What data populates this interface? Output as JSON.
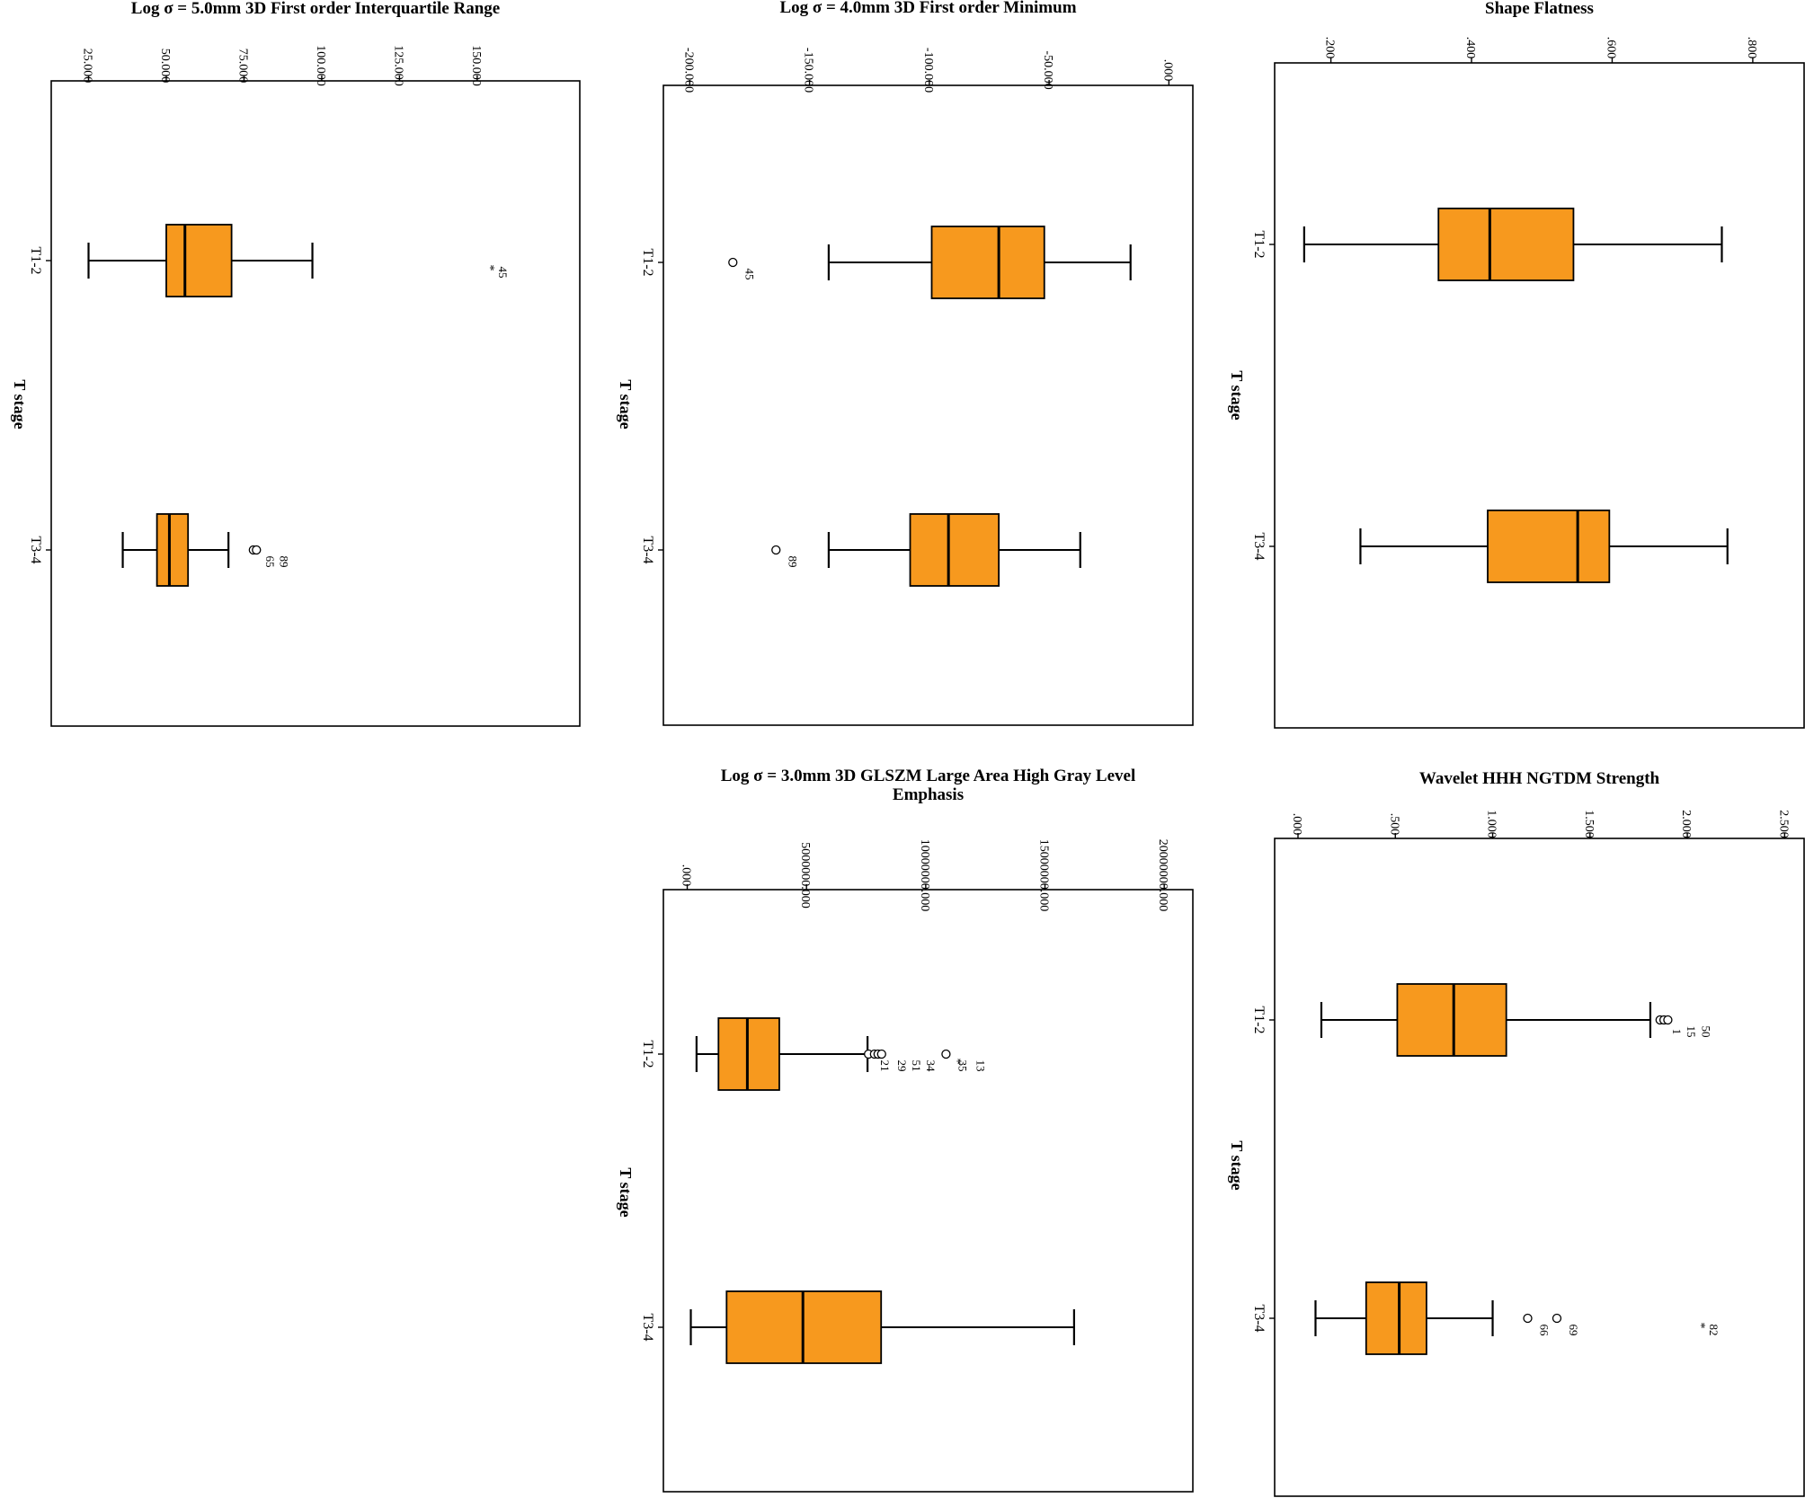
{
  "chart_data": [
    {
      "type": "boxplot",
      "title": "Log σ = 5.0mm 3D First order Interquartile Range",
      "xlabel": "T stage",
      "categories": [
        "T1-2",
        "T3-4"
      ],
      "ylim": [
        13,
        183
      ],
      "ticks": [
        25,
        50,
        75,
        100,
        125,
        150
      ],
      "tick_labels": [
        "25.000",
        "50.000",
        "75.000",
        "100.000",
        "125.000",
        "150.000"
      ],
      "series": [
        {
          "category": "T1-2",
          "min": 25,
          "q1": 50,
          "median": 56,
          "q3": 71,
          "max": 97,
          "outliers": [
            {
              "value": 153,
              "kind": "extreme",
              "label": "45"
            }
          ]
        },
        {
          "category": "T3-4",
          "min": 36,
          "q1": 47,
          "median": 51,
          "q3": 57,
          "max": 70,
          "outliers": [
            {
              "value": 78,
              "kind": "outlier",
              "label": "65"
            },
            {
              "value": 79,
              "kind": "outlier",
              "label": "89"
            }
          ]
        }
      ]
    },
    {
      "type": "boxplot",
      "title": "Log σ = 4.0mm 3D First order Minimum",
      "xlabel": "T stage",
      "categories": [
        "T1-2",
        "T3-4"
      ],
      "ylim": [
        -211,
        10
      ],
      "ticks": [
        -200,
        -150,
        -100,
        -50,
        0
      ],
      "tick_labels": [
        "-200.000",
        "-150.000",
        "-100.000",
        "-50.000",
        ".000"
      ],
      "series": [
        {
          "category": "T1-2",
          "min": -142,
          "q1": -99,
          "median": -71,
          "q3": -52,
          "max": -16,
          "outliers": [
            {
              "value": -182,
              "kind": "outlier",
              "label": "45"
            }
          ]
        },
        {
          "category": "T3-4",
          "min": -142,
          "q1": -108,
          "median": -92,
          "q3": -71,
          "max": -37,
          "outliers": [
            {
              "value": -164,
              "kind": "outlier",
              "label": "89"
            }
          ]
        }
      ]
    },
    {
      "type": "boxplot",
      "title": "Shape Flatness",
      "xlabel": "T stage",
      "categories": [
        "T1-2",
        "T3-4"
      ],
      "ylim": [
        0.12,
        0.873
      ],
      "ticks": [
        0.2,
        0.4,
        0.6,
        0.8
      ],
      "tick_labels": [
        ".200",
        ".400",
        ".600",
        ".800"
      ],
      "series": [
        {
          "category": "T1-2",
          "min": 0.162,
          "q1": 0.353,
          "median": 0.426,
          "q3": 0.545,
          "max": 0.756,
          "outliers": []
        },
        {
          "category": "T3-4",
          "min": 0.242,
          "q1": 0.423,
          "median": 0.551,
          "q3": 0.596,
          "max": 0.764,
          "outliers": []
        }
      ]
    },
    {
      "type": "boxplot",
      "title": "Log σ = 3.0mm 3D GLSZM Large Area High Gray Level Emphasis",
      "xlabel": "T stage",
      "categories": [
        "T1-2",
        "T3-4"
      ],
      "ylim": [
        -1000000,
        21200000
      ],
      "ticks": [
        0,
        5000000,
        10000000,
        15000000,
        20000000
      ],
      "tick_labels": [
        ".000",
        "5000000.000",
        "10000000.000",
        "15000000.000",
        "20000000.000"
      ],
      "series": [
        {
          "category": "T1-2",
          "min": 390000,
          "q1": 1310000,
          "median": 2520000,
          "q3": 3860000,
          "max": 7560000,
          "outliers": [
            {
              "value": 7600000,
              "kind": "outlier",
              "label": "21"
            },
            {
              "value": 7850000,
              "kind": "outlier",
              "label": "29"
            },
            {
              "value": 8000000,
              "kind": "outlier",
              "label": "51"
            },
            {
              "value": 8150000,
              "kind": "outlier",
              "label": "34"
            },
            {
              "value": 10850000,
              "kind": "outlier",
              "label": "35"
            },
            {
              "value": 11150000,
              "kind": "extreme",
              "label": "13"
            }
          ]
        },
        {
          "category": "T3-4",
          "min": 150000,
          "q1": 1650000,
          "median": 4850000,
          "q3": 8130000,
          "max": 16220000,
          "outliers": []
        }
      ]
    },
    {
      "type": "boxplot",
      "title": "Wavelet HHH NGTDM Strength",
      "xlabel": "T stage",
      "categories": [
        "T1-2",
        "T3-4"
      ],
      "ylim": [
        -0.12,
        2.6
      ],
      "ticks": [
        0,
        0.5,
        1,
        1.5,
        2,
        2.5
      ],
      "tick_labels": [
        ".000",
        ".500",
        "1.000",
        "1.500",
        "2.000",
        "2.500"
      ],
      "series": [
        {
          "category": "T1-2",
          "min": 0.12,
          "q1": 0.51,
          "median": 0.8,
          "q3": 1.07,
          "max": 1.81,
          "outliers": [
            {
              "value": 1.86,
              "kind": "outlier",
              "label": "1"
            },
            {
              "value": 1.88,
              "kind": "outlier",
              "label": "15"
            },
            {
              "value": 1.9,
              "kind": "outlier",
              "label": "50"
            }
          ]
        },
        {
          "category": "T3-4",
          "min": 0.09,
          "q1": 0.35,
          "median": 0.52,
          "q3": 0.66,
          "max": 1.0,
          "outliers": [
            {
              "value": 1.18,
              "kind": "outlier",
              "label": "66"
            },
            {
              "value": 1.33,
              "kind": "outlier",
              "label": "69"
            },
            {
              "value": 2.05,
              "kind": "extreme",
              "label": "82"
            }
          ]
        }
      ]
    }
  ],
  "colors": {
    "box_fill": "#F7991E",
    "stroke": "#000000",
    "background": "#FFFFFF"
  }
}
